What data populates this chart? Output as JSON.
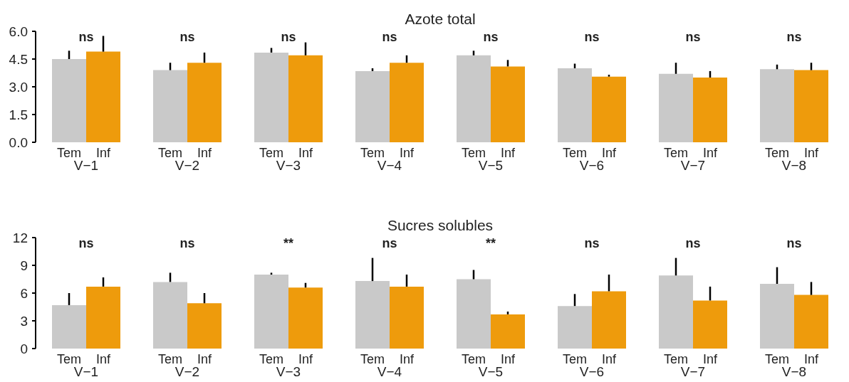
{
  "chart_data": [
    {
      "type": "bar",
      "title": "Azote total",
      "categories": [
        "V−1",
        "V−2",
        "V−3",
        "V−4",
        "V−5",
        "V−6",
        "V−7",
        "V−8"
      ],
      "series": [
        {
          "name": "Tem",
          "color": "#c9c9c9",
          "values": [
            4.5,
            3.9,
            4.85,
            3.85,
            4.7,
            4.0,
            3.7,
            3.95
          ],
          "errors": [
            [
              4.5,
              4.95
            ],
            [
              3.9,
              4.3
            ],
            [
              4.85,
              5.1
            ],
            [
              3.85,
              4.0
            ],
            [
              4.7,
              4.95
            ],
            [
              4.0,
              4.25
            ],
            [
              3.7,
              4.3
            ],
            [
              3.95,
              4.2
            ]
          ]
        },
        {
          "name": "Inf",
          "color": "#ee9b0c",
          "values": [
            4.9,
            4.3,
            4.7,
            4.3,
            4.1,
            3.55,
            3.5,
            3.9
          ],
          "errors": [
            [
              4.9,
              5.75
            ],
            [
              4.3,
              4.85
            ],
            [
              4.7,
              5.4
            ],
            [
              4.3,
              4.7
            ],
            [
              4.1,
              4.45
            ],
            [
              3.55,
              3.65
            ],
            [
              3.5,
              3.85
            ],
            [
              3.9,
              4.3
            ]
          ]
        }
      ],
      "ylim": [
        0,
        6
      ],
      "yticks": [
        {
          "value": 0,
          "label": "0.0"
        },
        1.5,
        {
          "value": 3,
          "label": "3.0"
        },
        4.5,
        {
          "value": 6,
          "label": "6.0"
        }
      ],
      "annotations": [
        "ns",
        "ns",
        "ns",
        "ns",
        "ns",
        "ns",
        "ns",
        "ns"
      ]
    },
    {
      "type": "bar",
      "title": "Sucres solubles",
      "categories": [
        "V−1",
        "V−2",
        "V−3",
        "V−4",
        "V−5",
        "V−6",
        "V−7",
        "V−8"
      ],
      "series": [
        {
          "name": "Tem",
          "color": "#c9c9c9",
          "values": [
            4.7,
            7.2,
            8.0,
            7.3,
            7.5,
            4.6,
            7.9,
            7.0
          ],
          "errors": [
            [
              4.7,
              6.0
            ],
            [
              7.2,
              8.2
            ],
            [
              8.0,
              8.2
            ],
            [
              7.3,
              9.8
            ],
            [
              7.5,
              8.5
            ],
            [
              4.6,
              5.9
            ],
            [
              7.9,
              9.8
            ],
            [
              7.0,
              8.8
            ]
          ]
        },
        {
          "name": "Inf",
          "color": "#ee9b0c",
          "values": [
            6.7,
            4.9,
            6.6,
            6.7,
            3.7,
            6.2,
            5.2,
            5.8
          ],
          "errors": [
            [
              6.7,
              7.7
            ],
            [
              4.9,
              6.0
            ],
            [
              6.6,
              7.1
            ],
            [
              6.7,
              8.0
            ],
            [
              3.7,
              4.0
            ],
            [
              6.2,
              8.0
            ],
            [
              5.2,
              6.7
            ],
            [
              5.8,
              7.2
            ]
          ]
        }
      ],
      "ylim": [
        0,
        12
      ],
      "yticks": [
        0,
        3,
        6,
        9,
        12
      ],
      "annotations": [
        "ns",
        "ns",
        "**",
        "ns",
        "**",
        "ns",
        "ns",
        "ns"
      ]
    }
  ]
}
